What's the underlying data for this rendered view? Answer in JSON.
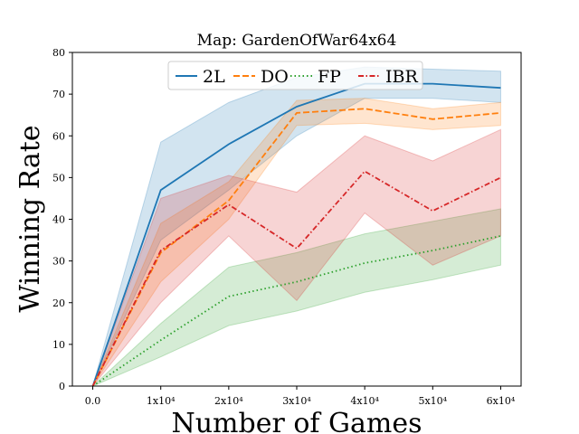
{
  "chart_data": {
    "type": "line",
    "title": "Map: GardenOfWar64x64",
    "xlabel": "Number of Games",
    "ylabel": "Winning Rate",
    "x": [
      0,
      10000,
      20000,
      30000,
      40000,
      50000,
      60000
    ],
    "xtick_labels": [
      "0.0",
      "1x10⁴",
      "2x10⁴",
      "3x10⁴",
      "4x10⁴",
      "5x10⁴",
      "6x10⁴"
    ],
    "xlim": [
      -3000,
      63000
    ],
    "ylim": [
      0,
      80
    ],
    "yticks": [
      0,
      10,
      20,
      30,
      40,
      50,
      60,
      70,
      80
    ],
    "grid": false,
    "legend_position": "top-center",
    "series": [
      {
        "name": "2L",
        "color": "#1f77b4",
        "dash": "solid",
        "values": [
          0,
          47,
          58,
          67,
          72.5,
          72.5,
          71.5
        ],
        "lower": [
          0,
          35,
          47,
          60,
          69,
          69,
          68
        ],
        "upper": [
          0,
          58.5,
          68,
          74,
          76.5,
          76,
          75.5
        ]
      },
      {
        "name": "DO",
        "color": "#ff7f0e",
        "dash": "dashed",
        "values": [
          0,
          32,
          44.5,
          65.5,
          66.5,
          64,
          65.5
        ],
        "lower": [
          0,
          25,
          40,
          62.5,
          63,
          61.5,
          62.5
        ],
        "upper": [
          0,
          39,
          49,
          68.5,
          69,
          66.5,
          68
        ]
      },
      {
        "name": "FP",
        "color": "#2ca02c",
        "dash": "dotted",
        "values": [
          0,
          11,
          21.5,
          25,
          29.5,
          32.5,
          36
        ],
        "lower": [
          0,
          7,
          14.5,
          18,
          22.5,
          25.5,
          29
        ],
        "upper": [
          0,
          15,
          28.5,
          32,
          36.5,
          39.5,
          42.5
        ]
      },
      {
        "name": "IBR",
        "color": "#d62728",
        "dash": "dashdot",
        "values": [
          0,
          32.5,
          43.5,
          33,
          51.5,
          42,
          50
        ],
        "lower": [
          0,
          20,
          36,
          20.5,
          41.5,
          29,
          36
        ],
        "upper": [
          0,
          45,
          50.5,
          46.5,
          60,
          54,
          61.5
        ]
      }
    ]
  }
}
